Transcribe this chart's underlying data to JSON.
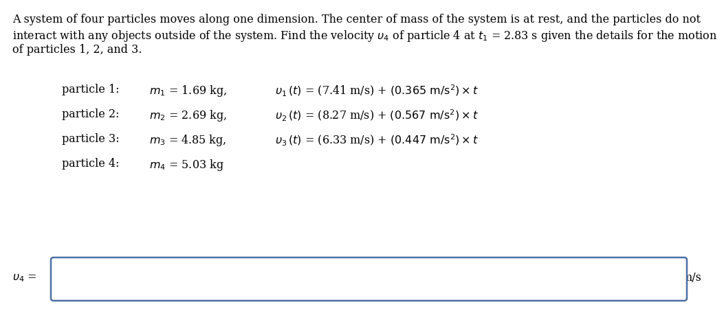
{
  "bg_color": "#ffffff",
  "text_color": "#000000",
  "box_color": "#4a6fa5",
  "fs_body": 11.5,
  "fs_particle": 11.5,
  "para_line1": "A system of four particles moves along one dimension. The center of mass of the system is at rest, and the particles do not",
  "para_line2_plain": "interact with any objects outside of the system. Find the velocity ",
  "para_line2_math1": "$\\upsilon_4$",
  "para_line2_mid": " of particle 4 at ",
  "para_line2_math2": "$t_1$",
  "para_line2_end": " = 2.83 s given the details for the motion",
  "para_line3": "of particles 1, 2, and 3.",
  "p1_label": "particle 1:",
  "p1_mass": "$m_1$ = 1.69 kg,",
  "p1_vel1": "$\\upsilon_1\\,(t)$ = (7.41 m/s) + ",
  "p1_vel2": "$\\left(0.365\\ \\mathrm{m/s^2}\\right)$",
  "p1_vel3": " × $t$",
  "p2_label": "particle 2:",
  "p2_mass": "$m_2$ = 2.69 kg,",
  "p2_vel1": "$\\upsilon_2\\,(t)$ = (8.27 m/s) + ",
  "p2_vel2": "$\\left(0.567\\ \\mathrm{m/s^2}\\right)$",
  "p2_vel3": " × $t$",
  "p3_label": "particle 3:",
  "p3_mass": "$m_3$ = 4.85 kg,",
  "p3_vel1": "$\\upsilon_3\\,(t)$ = (6.33 m/s) + ",
  "p3_vel2": "$\\left(0.447\\ \\mathrm{m/s^2}\\right)$",
  "p3_vel3": " × $t$",
  "p4_label": "particle 4:",
  "p4_mass": "$m_4$ = 5.03 kg",
  "ans_label": "$\\upsilon_4$ =",
  "ans_unit": "m/s"
}
